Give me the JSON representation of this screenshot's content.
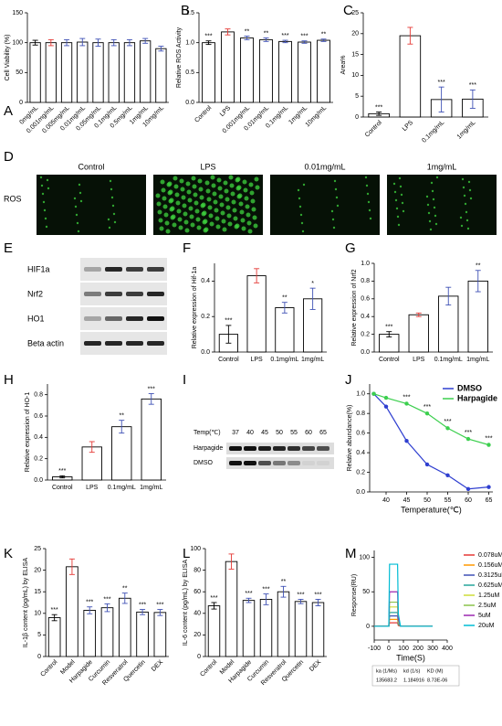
{
  "chart_data": [
    {
      "type": "bar",
      "label": "A",
      "ylabel": "Cell Viability (%)",
      "categories": [
        "0mg/mL",
        "0.001mg/mL",
        "0.005mg/mL",
        "0.01mg/mL",
        "0.05mg/mL",
        "0.1mg/mL",
        "0.5mg/mL",
        "1mg/mL",
        "10mg/mL"
      ],
      "values": [
        100,
        100,
        100,
        101,
        100,
        100,
        100,
        103,
        90
      ],
      "errors": [
        4,
        5,
        5,
        6,
        6,
        5,
        5,
        4,
        4
      ],
      "colors": [
        "#000000",
        "#e53935",
        "#3f51b5",
        "#3f51b5",
        "#3f51b5",
        "#3f51b5",
        "#3f51b5",
        "#3f51b5",
        "#3f51b5"
      ],
      "ylim": [
        0,
        150
      ],
      "yticks": [
        0,
        50,
        100,
        150
      ]
    },
    {
      "type": "bar",
      "label": "B",
      "ylabel": "Relative ROS Activity",
      "categories": [
        "Control",
        "LPS",
        "0.001mg/mL",
        "0.01mg/mL",
        "0.1mg/mL",
        "1mg/mL",
        "10mg/mL"
      ],
      "values": [
        1.0,
        1.18,
        1.08,
        1.05,
        1.02,
        1.01,
        1.04
      ],
      "errors": [
        0.03,
        0.05,
        0.03,
        0.03,
        0.02,
        0.02,
        0.02
      ],
      "annotations": [
        "***",
        null,
        "**",
        "**",
        "***",
        "***",
        "**"
      ],
      "colors": [
        "#000000",
        "#e53935",
        "#3f51b5",
        "#3f51b5",
        "#3f51b5",
        "#3f51b5",
        "#3f51b5"
      ],
      "ylim": [
        0,
        1.5
      ],
      "yticks": [
        {
          "value": 0,
          "label": "0.0"
        },
        {
          "value": 0.5,
          "label": "0.5"
        },
        {
          "value": 1,
          "label": "1.0"
        },
        {
          "value": 1.5,
          "label": "1.5"
        }
      ]
    },
    {
      "type": "bar",
      "label": "C",
      "ylabel": "Area%",
      "categories": [
        "Control",
        "LPS",
        "0.1mg/mL",
        "1mg/mL"
      ],
      "values": [
        0.8,
        19.5,
        4.2,
        4.3
      ],
      "errors": [
        0.4,
        2,
        3,
        2.2
      ],
      "annotations": [
        "***",
        null,
        "***",
        "***"
      ],
      "colors": [
        "#000000",
        "#e53935",
        "#3f51b5",
        "#3f51b5"
      ],
      "ylim": [
        0,
        25
      ],
      "yticks": [
        0,
        5,
        10,
        15,
        20,
        25
      ]
    },
    {
      "type": "bar",
      "label": "F",
      "ylabel": "Relative expression of Hif-1a",
      "categories": [
        "Control",
        "LPS",
        "0.1mg/mL",
        "1mg/mL"
      ],
      "values": [
        0.1,
        0.43,
        0.25,
        0.3
      ],
      "errors": [
        0.05,
        0.04,
        0.03,
        0.06
      ],
      "annotations": [
        "***",
        null,
        "**",
        "*"
      ],
      "colors": [
        "#000000",
        "#e53935",
        "#3f51b5",
        "#3f51b5"
      ],
      "ylim": [
        0,
        0.5
      ],
      "yticks": [
        {
          "value": 0,
          "label": "0.0"
        },
        {
          "value": 0.2,
          "label": "0.2"
        },
        {
          "value": 0.4,
          "label": "0.4"
        }
      ]
    },
    {
      "type": "bar",
      "label": "G",
      "ylabel": "Relative expression of Nrf2",
      "categories": [
        "Control",
        "LPS",
        "0.1mg/mL",
        "1mg/mL"
      ],
      "values": [
        0.2,
        0.42,
        0.63,
        0.8
      ],
      "errors": [
        0.03,
        0.02,
        0.1,
        0.12
      ],
      "annotations": [
        "***",
        null,
        null,
        "**"
      ],
      "colors": [
        "#000000",
        "#e53935",
        "#3f51b5",
        "#3f51b5"
      ],
      "ylim": [
        0,
        1
      ],
      "yticks": [
        {
          "value": 0,
          "label": "0.0"
        },
        {
          "value": 0.2,
          "label": "0.2"
        },
        {
          "value": 0.4,
          "label": "0.4"
        },
        {
          "value": 0.6,
          "label": "0.6"
        },
        {
          "value": 0.8,
          "label": "0.8"
        },
        {
          "value": 1,
          "label": "1.0"
        }
      ]
    },
    {
      "type": "bar",
      "label": "H",
      "ylabel": "Relative expression of HO-1",
      "categories": [
        "Control",
        "LPS",
        "0.1mg/mL",
        "1mg/mL"
      ],
      "values": [
        0.03,
        0.31,
        0.5,
        0.76
      ],
      "errors": [
        0.01,
        0.05,
        0.06,
        0.05
      ],
      "annotations": [
        "***",
        null,
        "**",
        "***"
      ],
      "colors": [
        "#000000",
        "#e53935",
        "#3f51b5",
        "#3f51b5"
      ],
      "ylim": [
        0,
        0.9
      ],
      "yticks": [
        {
          "value": 0,
          "label": "0.0"
        },
        {
          "value": 0.2,
          "label": "0.2"
        },
        {
          "value": 0.4,
          "label": "0.4"
        },
        {
          "value": 0.6,
          "label": "0.6"
        },
        {
          "value": 0.8,
          "label": "0.8"
        }
      ]
    },
    {
      "type": "line",
      "label": "J",
      "ylabel": "Relative abundance(%)",
      "xlabel": "Temperature(℃)",
      "x": [
        37,
        40,
        45,
        50,
        55,
        60,
        65
      ],
      "xlim": [
        36,
        66
      ],
      "xticks": [
        40,
        45,
        50,
        55,
        60,
        65
      ],
      "ylim": [
        0,
        1.1
      ],
      "yticks": [
        {
          "value": 0,
          "label": "0.0"
        },
        {
          "value": 0.2,
          "label": "0.2"
        },
        {
          "value": 0.4,
          "label": "0.4"
        },
        {
          "value": 0.6,
          "label": "0.6"
        },
        {
          "value": 0.8,
          "label": "0.8"
        },
        {
          "value": 1,
          "label": "1.0"
        }
      ],
      "legend": "upper right",
      "annotations": [
        null,
        null,
        "***",
        "***",
        "***",
        "***",
        "***"
      ],
      "series": [
        {
          "name": "DMSO",
          "color": "#2f3fd0",
          "values": [
            1.0,
            0.87,
            0.52,
            0.28,
            0.17,
            0.03,
            0.05
          ]
        },
        {
          "name": "Harpagide",
          "color": "#3ccf4e",
          "values": [
            1.0,
            0.96,
            0.9,
            0.8,
            0.65,
            0.54,
            0.48
          ]
        }
      ]
    },
    {
      "type": "bar",
      "label": "K",
      "ylabel": "IL-1β content (pg/mL) by ELISA",
      "categories": [
        "Control",
        "Model",
        "Harpagide",
        "Curcumin",
        "Resveratrol",
        "Quercetin",
        "DEX"
      ],
      "values": [
        9,
        20.8,
        10.7,
        11.3,
        13.5,
        10.3,
        10.2
      ],
      "errors": [
        0.7,
        1.8,
        0.8,
        0.9,
        1.2,
        0.6,
        0.7
      ],
      "annotations": [
        "***",
        null,
        "***",
        "***",
        "**",
        "***",
        "***"
      ],
      "colors": [
        "#000000",
        "#e53935",
        "#3f51b5",
        "#3f51b5",
        "#3f51b5",
        "#3f51b5",
        "#3f51b5"
      ],
      "ylim": [
        0,
        25
      ],
      "yticks": [
        0,
        5,
        10,
        15,
        20,
        25
      ]
    },
    {
      "type": "bar",
      "label": "L",
      "ylabel": "IL-6 content (pg/mL) by ELISA",
      "categories": [
        "Control",
        "Model",
        "Harpagide",
        "Curcumin",
        "Resveratrol",
        "Quercetin",
        "DEX"
      ],
      "values": [
        47,
        88,
        52,
        53,
        60,
        51,
        50
      ],
      "errors": [
        3,
        7,
        2,
        5,
        5,
        2,
        3
      ],
      "annotations": [
        "***",
        null,
        "***",
        "***",
        "**",
        "***",
        "***"
      ],
      "colors": [
        "#000000",
        "#e53935",
        "#3f51b5",
        "#3f51b5",
        "#3f51b5",
        "#3f51b5",
        "#3f51b5"
      ],
      "ylim": [
        0,
        100
      ],
      "yticks": [
        0,
        20,
        40,
        60,
        80,
        100
      ]
    },
    {
      "type": "line",
      "label": "M",
      "ylabel": "Response(RU)",
      "xlabel": "Time(S)",
      "x": [
        -100,
        -10,
        0,
        5,
        60,
        65,
        80,
        150,
        300
      ],
      "xlim": [
        -100,
        400
      ],
      "xticks": [
        -100,
        0,
        100,
        200,
        300,
        400
      ],
      "ylim": [
        -20,
        110
      ],
      "yticks": [
        0,
        50,
        100
      ],
      "legend": "right",
      "series": [
        {
          "name": "0.078uM",
          "color": "#e53935",
          "values": [
            0,
            0,
            0,
            5,
            5,
            1,
            0,
            0,
            0
          ]
        },
        {
          "name": "0.156uM",
          "color": "#ff9800",
          "values": [
            0,
            0,
            0,
            10,
            10,
            2,
            0,
            0,
            0
          ]
        },
        {
          "name": "0.3125uM",
          "color": "#3f51b5",
          "values": [
            0,
            0,
            0,
            15,
            15,
            3,
            0,
            0,
            0
          ]
        },
        {
          "name": "0.625uM",
          "color": "#26a69a",
          "values": [
            0,
            0,
            0,
            20,
            20,
            4,
            0,
            0,
            0
          ]
        },
        {
          "name": "1.25uM",
          "color": "#cddc39",
          "values": [
            0,
            0,
            0,
            28,
            28,
            6,
            0,
            0,
            0
          ]
        },
        {
          "name": "2.5uM",
          "color": "#8bc34a",
          "values": [
            0,
            0,
            0,
            35,
            35,
            7,
            0,
            0,
            0
          ]
        },
        {
          "name": "5uM",
          "color": "#9c27b0",
          "values": [
            0,
            0,
            0,
            50,
            50,
            10,
            0,
            0,
            0
          ]
        },
        {
          "name": "20uM",
          "color": "#00bcd4",
          "values": [
            0,
            0,
            0,
            90,
            90,
            18,
            0,
            0,
            0
          ]
        }
      ],
      "kinetics": {
        "headers": [
          "ka (1/Ms)",
          "kd (1/s)",
          "KD (M)"
        ],
        "values": [
          "135683.2",
          "1.184916",
          "8.73E-06"
        ]
      }
    }
  ],
  "panel_d": {
    "label": "D",
    "row": "ROS",
    "columns": [
      "Control",
      "LPS",
      "0.01mg/mL",
      "1mg/mL"
    ]
  },
  "panel_e": {
    "label": "E",
    "bands": [
      "HIF1a",
      "Nrf2",
      "HO1",
      "Beta actin"
    ]
  },
  "panel_i": {
    "label": "I",
    "temp_label": "Temp(℃)",
    "temps": [
      "37",
      "40",
      "45",
      "50",
      "55",
      "60",
      "65"
    ],
    "rows": [
      "Harpagide",
      "DMSO"
    ]
  }
}
